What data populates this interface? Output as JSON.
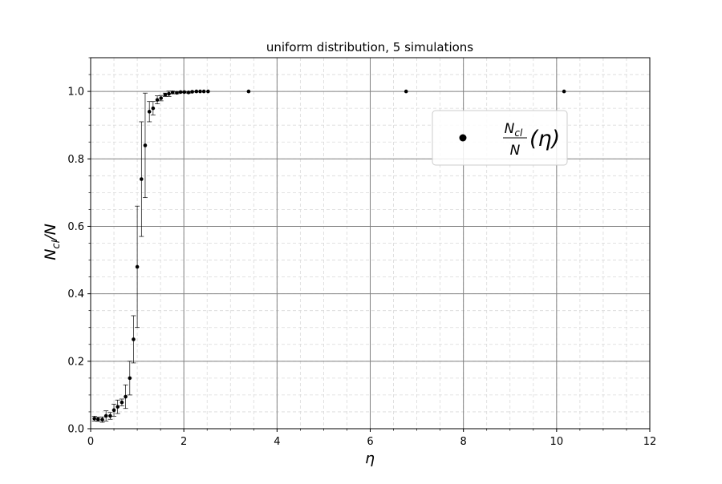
{
  "chart_data": {
    "type": "scatter",
    "title": "uniform distribution, 5 simulations",
    "xlabel": "η",
    "ylabel": {
      "base": "N",
      "sub": "cl",
      "tail": "/N"
    },
    "xlim": [
      0,
      12
    ],
    "ylim": [
      0,
      1.1
    ],
    "x_ticks": [
      0,
      2,
      4,
      6,
      8,
      10,
      12
    ],
    "y_ticks": [
      0.0,
      0.2,
      0.4,
      0.6,
      0.8,
      1.0
    ],
    "x_tick_labels": [
      "0",
      "2",
      "4",
      "6",
      "8",
      "10",
      "12"
    ],
    "y_tick_labels": [
      "0.0",
      "0.2",
      "0.4",
      "0.6",
      "0.8",
      "1.0"
    ],
    "grid": {
      "major": true,
      "minor": true
    },
    "legend": {
      "position": "upper-right",
      "entry": {
        "numerator_base": "N",
        "numerator_sub": "cl",
        "denominator": "N",
        "argument": "(η)"
      }
    },
    "color": "#000000",
    "series": [
      {
        "x": [
          0.08,
          0.16,
          0.25,
          0.33,
          0.42,
          0.5,
          0.58,
          0.67,
          0.75,
          0.84,
          0.92,
          1.0,
          1.09,
          1.17,
          1.26,
          1.34,
          1.43,
          1.51,
          1.6,
          1.68,
          1.76,
          1.85,
          1.93,
          2.01,
          2.1,
          2.18,
          2.27,
          2.35,
          2.43,
          2.52,
          3.39,
          6.77,
          10.16
        ],
        "y": [
          0.03,
          0.028,
          0.027,
          0.038,
          0.038,
          0.055,
          0.065,
          0.078,
          0.095,
          0.15,
          0.265,
          0.48,
          0.74,
          0.84,
          0.94,
          0.95,
          0.975,
          0.98,
          0.99,
          0.993,
          0.997,
          0.996,
          0.998,
          0.998,
          0.997,
          0.999,
          1.0,
          1.0,
          1.0,
          1.0,
          1.0,
          1.0,
          1.0
        ],
        "err": [
          0.007,
          0.006,
          0.008,
          0.015,
          0.01,
          0.018,
          0.02,
          0.01,
          0.035,
          0.05,
          0.07,
          0.18,
          0.17,
          0.155,
          0.03,
          0.02,
          0.012,
          0.008,
          0.005,
          0.008,
          0.004,
          0.003,
          0.002,
          0.002,
          0.002,
          0.001,
          0.0,
          0.0,
          0.0,
          0.0,
          0.0,
          0.0,
          0.0
        ]
      }
    ]
  }
}
